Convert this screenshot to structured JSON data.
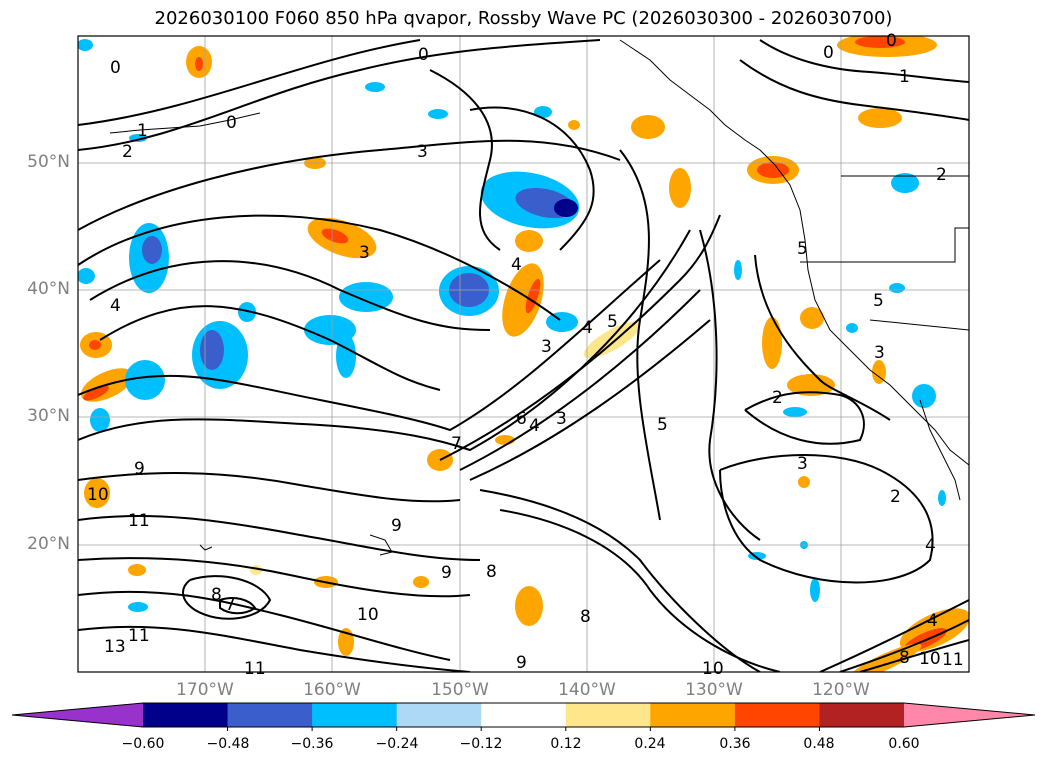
{
  "title": "2026030100 F060 850 hPa qvapor, Rossby Wave PC (2026030300 - 2026030700)",
  "latitude_labels": [
    "50°N",
    "40°N",
    "30°N",
    "20°N"
  ],
  "longitude_labels": [
    "170°W",
    "160°W",
    "150°W",
    "140°W",
    "130°W",
    "120°W"
  ],
  "colorbar": {
    "ticks": [
      "−0.60",
      "−0.48",
      "−0.36",
      "−0.24",
      "−0.12",
      "0.12",
      "0.24",
      "0.36",
      "0.48",
      "0.60"
    ],
    "colors": [
      "#9932cc",
      "#00008b",
      "#3a5fcd",
      "#00bfff",
      "#add8f6",
      "#ffffff",
      "#ffe68a",
      "#ffa500",
      "#ff4500",
      "#b22222",
      "#ff88aa"
    ]
  },
  "contour_labels": [
    {
      "text": "0"
    },
    {
      "text": "0"
    },
    {
      "text": "0"
    },
    {
      "text": "0"
    },
    {
      "text": "0"
    },
    {
      "text": "1"
    },
    {
      "text": "1"
    },
    {
      "text": "2"
    },
    {
      "text": "2"
    },
    {
      "text": "3"
    },
    {
      "text": "3"
    },
    {
      "text": "4"
    },
    {
      "text": "4"
    },
    {
      "text": "3"
    },
    {
      "text": "4"
    },
    {
      "text": "5"
    },
    {
      "text": "5"
    },
    {
      "text": "5"
    },
    {
      "text": "3"
    },
    {
      "text": "2"
    },
    {
      "text": "3"
    },
    {
      "text": "6"
    },
    {
      "text": "4"
    },
    {
      "text": "3"
    },
    {
      "text": "5"
    },
    {
      "text": "7"
    },
    {
      "text": "9"
    },
    {
      "text": "10"
    },
    {
      "text": "11"
    },
    {
      "text": "9"
    },
    {
      "text": "9"
    },
    {
      "text": "8"
    },
    {
      "text": "8"
    },
    {
      "text": "7"
    },
    {
      "text": "10"
    },
    {
      "text": "11"
    },
    {
      "text": "13"
    },
    {
      "text": "11"
    },
    {
      "text": "8"
    },
    {
      "text": "9"
    },
    {
      "text": "10"
    },
    {
      "text": "2"
    },
    {
      "text": "4"
    },
    {
      "text": "4"
    },
    {
      "text": "8"
    },
    {
      "text": "10"
    },
    {
      "text": "11"
    }
  ]
}
